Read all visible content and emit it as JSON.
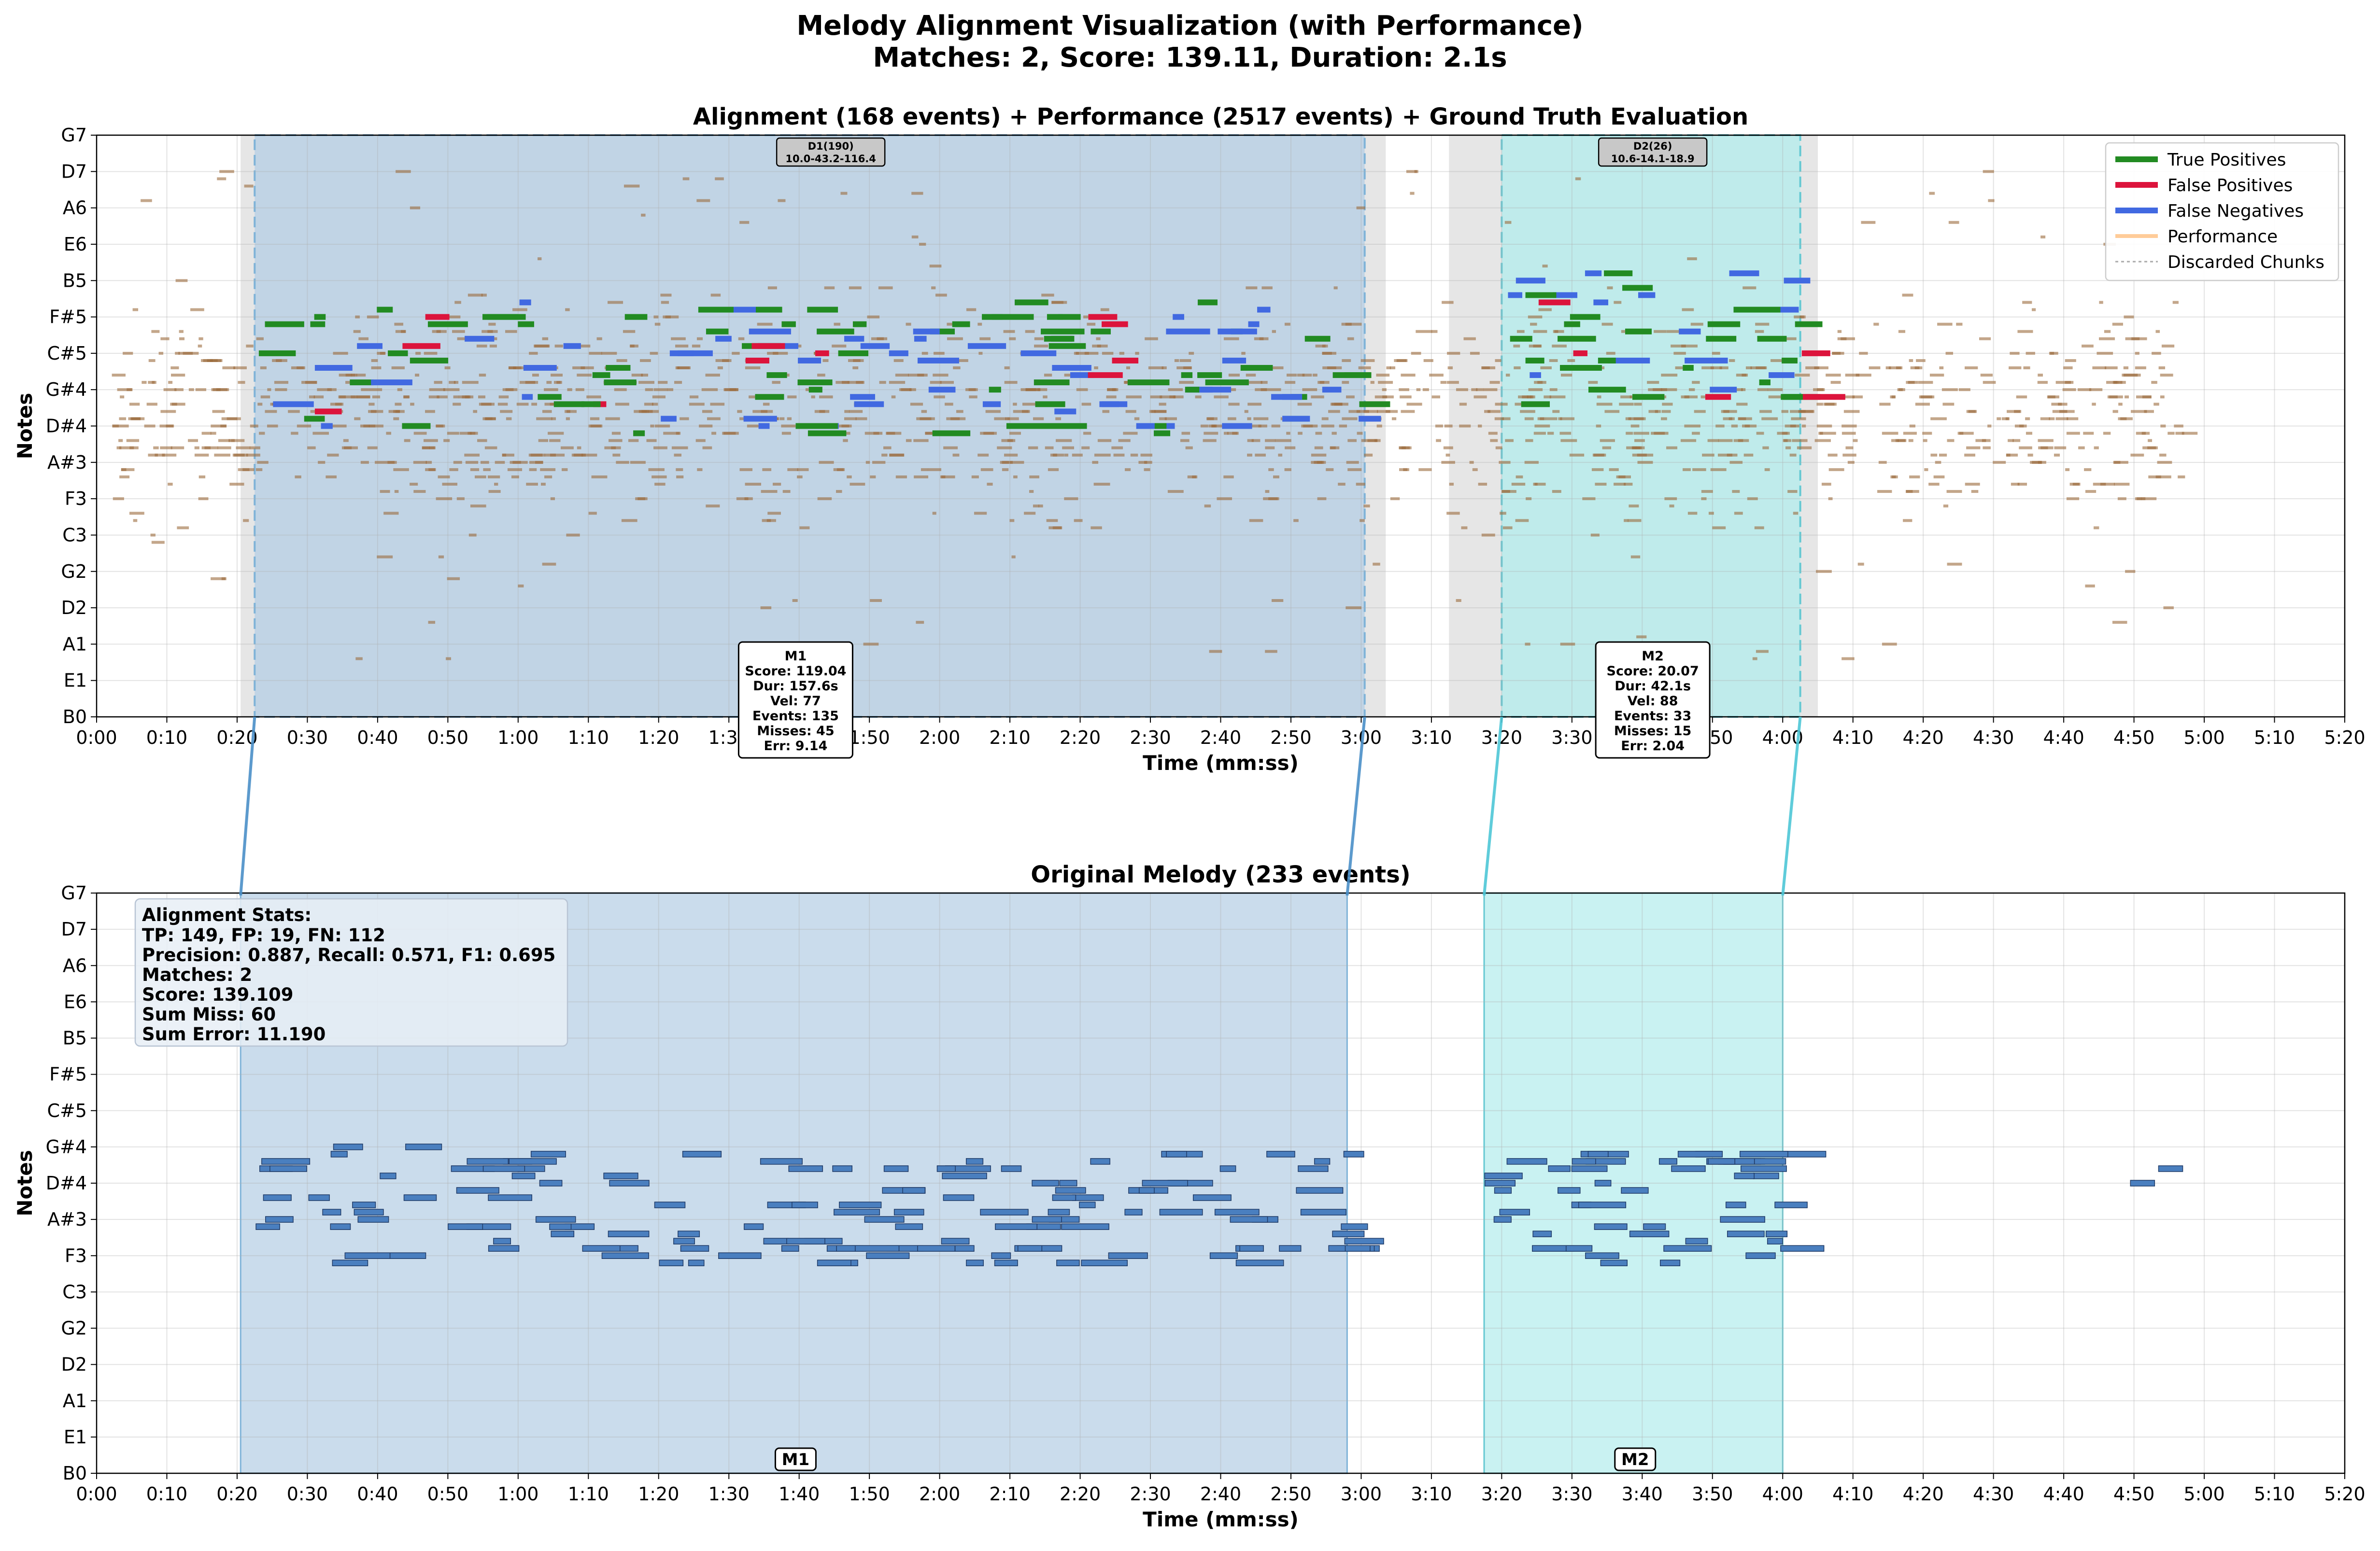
{
  "figure": {
    "title_line1": "Melody Alignment Visualization (with Performance)",
    "title_line2": "Matches: 2, Score: 139.11, Duration: 2.1s"
  },
  "colors": {
    "true_positive": "#228b22",
    "false_positive": "#dc143c",
    "false_negative": "#4169e1",
    "performance": "#ffcc99",
    "performance_note": "#9b6b3c",
    "match1_region": "#b4cde4",
    "match2_region": "#b2ecec",
    "discarded": "#dcdcdc",
    "melody_note": "#4a7fbf"
  },
  "chart_data": [
    {
      "type": "piano-roll",
      "title": "Alignment (168 events) + Performance (2517 events) + Ground Truth Evaluation",
      "xlabel": "Time (mm:ss)",
      "ylabel": "Notes",
      "xlim": [
        0,
        320
      ],
      "x_tick_labels": [
        "0:00",
        "0:10",
        "0:20",
        "0:30",
        "0:40",
        "0:50",
        "1:00",
        "1:10",
        "1:20",
        "1:30",
        "1:40",
        "1:50",
        "2:00",
        "2:10",
        "2:20",
        "2:30",
        "2:40",
        "2:50",
        "3:00",
        "3:10",
        "3:20",
        "3:30",
        "3:40",
        "3:50",
        "4:00",
        "4:10",
        "4:20",
        "4:30",
        "4:40",
        "4:50",
        "5:00",
        "5:10",
        "5:20"
      ],
      "y_tick_labels": [
        "B0",
        "E1",
        "A1",
        "D2",
        "G2",
        "C3",
        "F3",
        "A#3",
        "D#4",
        "G#4",
        "C#5",
        "F#5",
        "B5",
        "E6",
        "A6",
        "D7",
        "G7"
      ],
      "ylim_midi": [
        23,
        103
      ],
      "grid": true,
      "legend": {
        "position": "top-right",
        "entries": [
          "True Positives",
          "False Positives",
          "False Negatives",
          "Performance",
          "Discarded Chunks"
        ]
      },
      "match_regions": [
        {
          "start": 22.5,
          "end": 180.5,
          "label": "M1",
          "info": [
            "M1",
            "Score: 119.04",
            "Dur: 157.6s",
            "Vel: 77",
            "Events: 135",
            "Misses: 45",
            "Err: 9.14"
          ]
        },
        {
          "start": 200.0,
          "end": 242.5,
          "label": "M2",
          "info": [
            "M2",
            "Score: 20.07",
            "Dur: 42.1s",
            "Vel: 88",
            "Events: 33",
            "Misses: 15",
            "Err: 2.04"
          ]
        }
      ],
      "discarded_chunks": [
        {
          "start": 20.5,
          "end": 183.5,
          "label": [
            "D1(190)",
            "10.0-43.2-116.4"
          ]
        },
        {
          "start": 192.5,
          "end": 245.0,
          "label": [
            "D2(26)",
            "10.6-14.1-18.9"
          ]
        }
      ],
      "performance_time_range": [
        0,
        297
      ],
      "performance_pitch_range_midi": [
        29,
        99
      ]
    },
    {
      "type": "piano-roll",
      "title": "Original Melody (233 events)",
      "xlabel": "Time (mm:ss)",
      "ylabel": "Notes",
      "xlim": [
        0,
        320
      ],
      "x_tick_labels": [
        "0:00",
        "0:10",
        "0:20",
        "0:30",
        "0:40",
        "0:50",
        "1:00",
        "1:10",
        "1:20",
        "1:30",
        "1:40",
        "1:50",
        "2:00",
        "2:10",
        "2:20",
        "2:30",
        "2:40",
        "2:50",
        "3:00",
        "3:10",
        "3:20",
        "3:30",
        "3:40",
        "3:50",
        "4:00",
        "4:10",
        "4:20",
        "4:30",
        "4:40",
        "4:50",
        "5:00",
        "5:10",
        "5:20"
      ],
      "y_tick_labels": [
        "B0",
        "E1",
        "A1",
        "D2",
        "G2",
        "C3",
        "F3",
        "A#3",
        "D#4",
        "G#4",
        "C#5",
        "F#5",
        "B5",
        "E6",
        "A6",
        "D7",
        "G7"
      ],
      "ylim_midi": [
        23,
        103
      ],
      "grid": true,
      "match_regions": [
        {
          "start": 20.5,
          "end": 178.0,
          "label": "M1"
        },
        {
          "start": 197.5,
          "end": 240.0,
          "label": "M2"
        }
      ],
      "stats": {
        "heading": "Alignment Stats:",
        "lines": [
          "TP: 149, FP: 19, FN: 112",
          "Precision: 0.887, Recall: 0.571, F1: 0.695",
          "Matches: 2",
          "Score: 139.109",
          "Sum Miss: 60",
          "Sum Error: 11.190"
        ]
      }
    }
  ]
}
